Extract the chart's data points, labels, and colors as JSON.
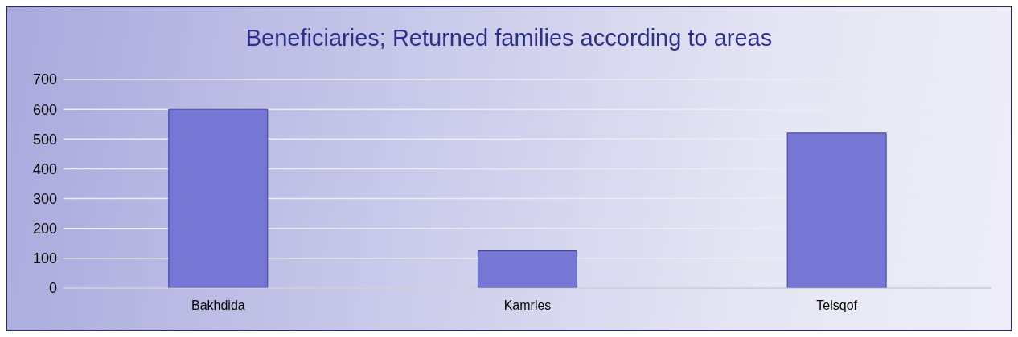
{
  "chart_data": {
    "type": "bar",
    "title": "Beneficiaries; Returned families according to areas",
    "categories": [
      "Bakhdida",
      "Kamrles",
      "Telsqof"
    ],
    "values": [
      600,
      125,
      520
    ],
    "color": "#7676d4",
    "ylim": [
      0,
      700
    ],
    "yticks": [
      0,
      100,
      200,
      300,
      400,
      500,
      600,
      700
    ],
    "grid": "y"
  }
}
